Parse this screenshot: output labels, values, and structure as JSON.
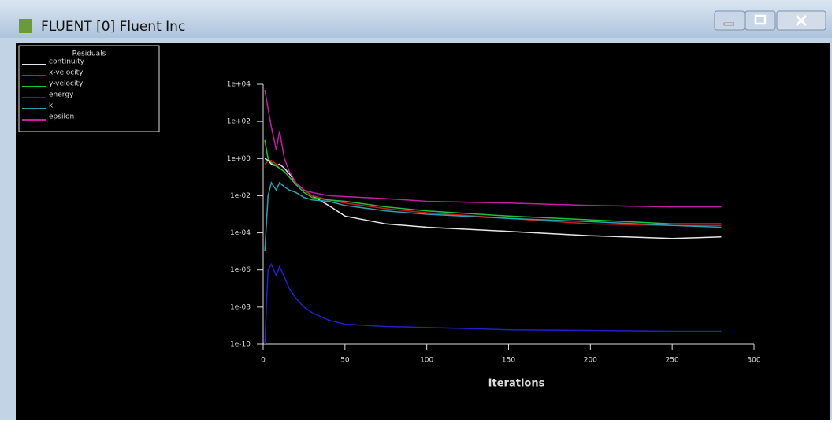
{
  "window": {
    "title": "FLUENT [0] Fluent Inc"
  },
  "chart_data": {
    "type": "line",
    "legend_title": "Residuals",
    "xlabel": "Iterations",
    "log_y": true,
    "legend_position": "top-left",
    "x": [
      1,
      3,
      5,
      8,
      10,
      13,
      16,
      20,
      25,
      30,
      40,
      50,
      75,
      100,
      150,
      200,
      250,
      280
    ],
    "series": [
      {
        "name": "continuity",
        "color": "#e8e8e8",
        "values": [
          1,
          0.8,
          0.5,
          0.4,
          0.5,
          0.3,
          0.15,
          0.05,
          0.02,
          0.01,
          0.003,
          0.0008,
          0.0003,
          0.0002,
          0.00012,
          7e-05,
          5e-05,
          6e-05
        ]
      },
      {
        "name": "x-velocity",
        "color": "#d01818",
        "values": [
          0.5,
          0.7,
          0.8,
          0.5,
          0.3,
          0.2,
          0.1,
          0.05,
          0.02,
          0.01,
          0.006,
          0.004,
          0.002,
          0.0012,
          0.0006,
          0.0003,
          0.00025,
          0.00025
        ]
      },
      {
        "name": "y-velocity",
        "color": "#20c040",
        "values": [
          10,
          1,
          0.6,
          0.4,
          0.3,
          0.2,
          0.1,
          0.04,
          0.015,
          0.008,
          0.006,
          0.005,
          0.0025,
          0.0015,
          0.0008,
          0.0005,
          0.0003,
          0.0003
        ]
      },
      {
        "name": "energy",
        "color": "#2020c8",
        "values": [
          1e-10,
          1e-06,
          2e-06,
          5e-07,
          1.5e-06,
          4e-07,
          1e-07,
          3e-08,
          1e-08,
          5e-09,
          2e-09,
          1.2e-09,
          9e-10,
          8e-10,
          6e-10,
          5.5e-10,
          5e-10,
          5e-10
        ]
      },
      {
        "name": "k",
        "color": "#30a0b0",
        "values": [
          1e-05,
          0.01,
          0.05,
          0.02,
          0.05,
          0.03,
          0.02,
          0.015,
          0.008,
          0.006,
          0.005,
          0.003,
          0.0015,
          0.001,
          0.0006,
          0.0004,
          0.00025,
          0.0002
        ]
      },
      {
        "name": "epsilon",
        "color": "#c020a0",
        "values": [
          5000,
          500,
          50,
          3,
          30,
          1,
          0.2,
          0.05,
          0.02,
          0.015,
          0.01,
          0.009,
          0.007,
          0.005,
          0.004,
          0.003,
          0.0025,
          0.0025
        ]
      }
    ],
    "xlim": [
      0,
      300
    ],
    "xticks": [
      0,
      50,
      100,
      150,
      200,
      250,
      300
    ],
    "ylim": [
      1e-10,
      10000
    ],
    "yticks": [
      {
        "value": 10000,
        "label": "1e+04"
      },
      {
        "value": 100,
        "label": "1e+02"
      },
      {
        "value": 1,
        "label": "1e+00"
      },
      {
        "value": 0.01,
        "label": "1e-02"
      },
      {
        "value": 0.0001,
        "label": "1e-04"
      },
      {
        "value": 1e-06,
        "label": "1e-06"
      },
      {
        "value": 1e-08,
        "label": "1e-08"
      },
      {
        "value": 1e-10,
        "label": "1e-10"
      }
    ]
  }
}
